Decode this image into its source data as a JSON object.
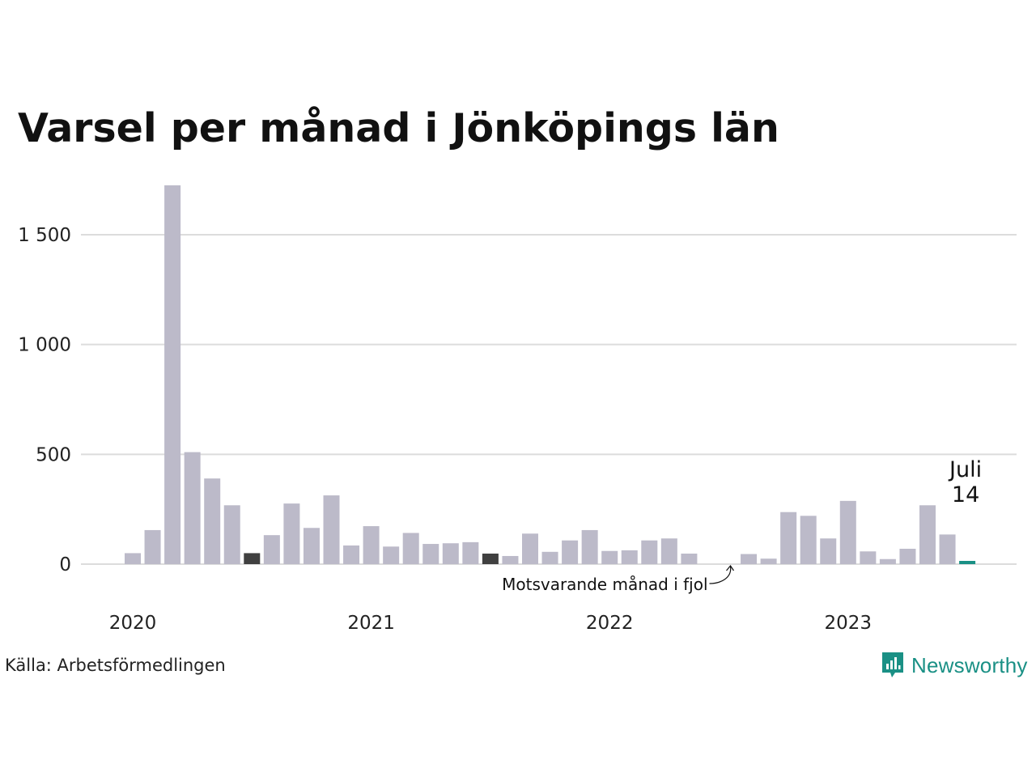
{
  "title": "Varsel per månad i Jönköpings län",
  "source": "Källa: Arbetsförmedlingen",
  "brand": "Newsworthy",
  "colors": {
    "bar": "#bcbac9",
    "highlight_prev_year": "#404040",
    "current": "#1a9085",
    "grid": "#dcdcdc",
    "brand": "#1a9085"
  },
  "chart_data": {
    "type": "bar",
    "title": "Varsel per månad i Jönköpings län",
    "xlabel": "",
    "ylabel": "",
    "ylim": [
      0,
      1800
    ],
    "yticks": [
      0,
      500,
      1000,
      1500
    ],
    "ytick_labels": [
      "0",
      "500",
      "1 000",
      "1 500"
    ],
    "year_labels": [
      "2020",
      "2021",
      "2022",
      "2023"
    ],
    "grid": true,
    "categories": [
      "2020-01",
      "2020-02",
      "2020-03",
      "2020-04",
      "2020-05",
      "2020-06",
      "2020-07",
      "2020-08",
      "2020-09",
      "2020-10",
      "2020-11",
      "2020-12",
      "2021-01",
      "2021-02",
      "2021-03",
      "2021-04",
      "2021-05",
      "2021-06",
      "2021-07",
      "2021-08",
      "2021-09",
      "2021-10",
      "2021-11",
      "2021-12",
      "2022-01",
      "2022-02",
      "2022-03",
      "2022-04",
      "2022-05",
      "2022-06",
      "2022-07",
      "2022-08",
      "2022-09",
      "2022-10",
      "2022-11",
      "2022-12",
      "2023-01",
      "2023-02",
      "2023-03",
      "2023-04",
      "2023-05",
      "2023-06",
      "2023-07"
    ],
    "values": [
      50,
      155,
      1725,
      510,
      390,
      268,
      50,
      132,
      276,
      165,
      313,
      85,
      173,
      80,
      142,
      92,
      95,
      100,
      48,
      37,
      139,
      56,
      108,
      155,
      60,
      63,
      108,
      117,
      48,
      0,
      0,
      46,
      25,
      237,
      220,
      117,
      288,
      58,
      23,
      70,
      268,
      135,
      14
    ],
    "highlighted": [
      "2020-07",
      "2021-07"
    ],
    "current": "2023-07",
    "annotations": [
      {
        "text": "Juli",
        "target": "2023-07"
      },
      {
        "text": "14",
        "target": "2023-07"
      },
      {
        "text": "Motsvarande månad i fjol",
        "target": "2022-07"
      }
    ]
  }
}
